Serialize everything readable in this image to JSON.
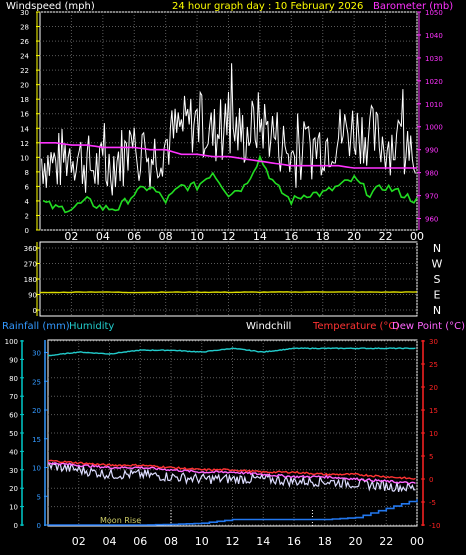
{
  "header": {
    "windspeed_label": "Windspeed (mph)",
    "title": "24 hour graph day : 10 February 2026",
    "barometer_label": "Barometer (mb)"
  },
  "x_ticks": [
    "02",
    "04",
    "06",
    "08",
    "10",
    "12",
    "14",
    "16",
    "18",
    "20",
    "22",
    "00"
  ],
  "wind_panel": {
    "left_ticks": [
      "30",
      "28",
      "26",
      "24",
      "22",
      "20",
      "18",
      "16",
      "14",
      "12",
      "10",
      "8",
      "6",
      "4",
      "2",
      "0"
    ],
    "right_ticks": [
      "1050",
      "1040",
      "1030",
      "1020",
      "1010",
      "1000",
      "990",
      "980",
      "970",
      "960"
    ]
  },
  "dir_panel": {
    "left_ticks": [
      "360",
      "270",
      "180",
      "90",
      "0"
    ],
    "right_ticks": [
      "N",
      "W",
      "S",
      "E",
      "N"
    ]
  },
  "bottom_panel": {
    "rainfall_label": "Rainfall (mm)",
    "humidity_label": "Humidity",
    "windchill_label": "Windchill",
    "temperature_label": "Temperature (°C)",
    "dewpoint_label": "Dew Point (°C)",
    "left_ticks": [
      "100",
      "90",
      "80",
      "70",
      "60",
      "50",
      "40",
      "30",
      "20",
      "10",
      "0"
    ],
    "humidity_ticks": [
      "30",
      "25",
      "20",
      "15",
      "10",
      "5",
      "0"
    ],
    "right_ticks": [
      "30",
      "25",
      "20",
      "15",
      "10",
      "5",
      "0",
      "-5",
      "-10"
    ],
    "moonrise_label": "Moon Rise"
  },
  "colors": {
    "frame": "#ffffff",
    "grid": "#5a5a5a",
    "wind_gust": "#ffffff",
    "wind_avg": "#22dd22",
    "barometer": "#ff33ff",
    "direction": "#dddd00",
    "humidity": "#22cccc",
    "rainfall": "#2277ee",
    "temperature": "#ff3333",
    "dewpoint": "#ff66ff",
    "windchill": "#ddddff",
    "tick_yellow": "#ffff00",
    "tick_red": "#ff2222",
    "tick_cyan": "#00cccc",
    "tick_blue": "#3399ff"
  },
  "chart_data": [
    {
      "type": "line",
      "xlabel": "",
      "x_hours": [
        0,
        1,
        2,
        3,
        4,
        5,
        6,
        7,
        8,
        9,
        10,
        11,
        12,
        13,
        14,
        15,
        16,
        17,
        18,
        19,
        20,
        21,
        22,
        23,
        24
      ],
      "series": [
        {
          "name": "Windspeed (mph)",
          "axis": "left",
          "values": [
            10,
            9,
            11,
            9,
            8,
            10,
            11,
            10,
            12,
            14,
            15,
            13,
            14,
            13,
            15,
            13,
            10,
            11,
            12,
            13,
            14,
            13,
            12,
            12,
            12
          ]
        },
        {
          "name": "Barometer (mb)",
          "axis": "right",
          "values": [
            993,
            993,
            992,
            992,
            991,
            991,
            991,
            990,
            990,
            988,
            988,
            987,
            987,
            986,
            985,
            984,
            983,
            983,
            983,
            983,
            982,
            982,
            982,
            982,
            982
          ]
        }
      ],
      "wind_avg_values": [
        4,
        3,
        3,
        4,
        3,
        3,
        5,
        6,
        4,
        6,
        6,
        8,
        5,
        6,
        10,
        6,
        4,
        5,
        5,
        6,
        7,
        5,
        6,
        5,
        4
      ],
      "ylim_left": [
        0,
        30
      ],
      "ylim_right": [
        955,
        1050
      ]
    },
    {
      "type": "line",
      "x_hours": [
        0,
        3,
        6,
        9,
        12,
        15,
        18,
        21,
        24
      ],
      "series": [
        {
          "name": "Wind direction",
          "values": [
            100,
            105,
            102,
            104,
            103,
            104,
            105,
            104,
            104
          ]
        }
      ],
      "ylim": [
        0,
        360
      ]
    },
    {
      "type": "line",
      "x_hours": [
        0,
        2,
        4,
        6,
        8,
        10,
        12,
        14,
        16,
        18,
        20,
        22,
        24
      ],
      "series": [
        {
          "name": "Humidity",
          "axis": "left",
          "values": [
            92,
            94,
            93,
            95,
            95,
            94,
            96,
            94,
            96,
            96,
            96,
            96,
            96
          ]
        },
        {
          "name": "Rainfall (mm)",
          "axis": "left",
          "values": [
            0,
            0,
            0,
            0,
            0.3,
            1,
            3,
            3,
            3,
            3,
            4,
            9,
            14
          ]
        },
        {
          "name": "Temperature (°C)",
          "axis": "right",
          "values": [
            4,
            3.5,
            3,
            3,
            2.5,
            2,
            2,
            1.5,
            1.5,
            1,
            1,
            0.5,
            0
          ]
        },
        {
          "name": "Dew Point (°C)",
          "axis": "right",
          "values": [
            3.5,
            3,
            2.5,
            2.5,
            2,
            1.5,
            1.5,
            1,
            0.5,
            0.5,
            0,
            -0.5,
            -1
          ]
        },
        {
          "name": "Windchill",
          "axis": "right",
          "values": [
            3,
            2,
            1,
            1,
            0.5,
            0,
            0,
            0,
            -0.5,
            -0.5,
            -1,
            -1.5,
            -2
          ]
        }
      ],
      "ylim_left": [
        0,
        100
      ],
      "ylim_right": [
        -10,
        30
      ]
    }
  ]
}
